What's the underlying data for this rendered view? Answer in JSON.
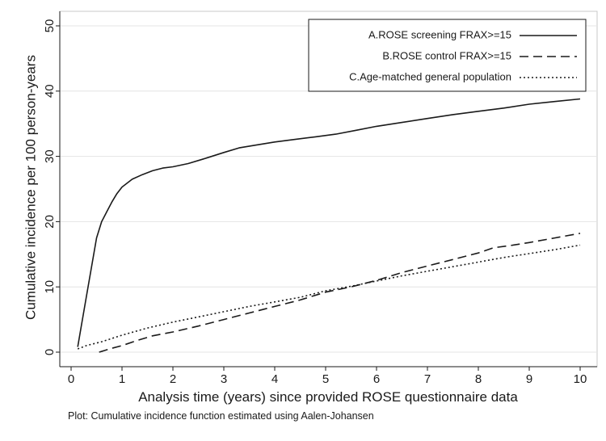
{
  "chart_data": {
    "type": "line",
    "title": "",
    "xlabel": "Analysis time (years) since provided ROSE questionnaire data",
    "ylabel": "Cumulative incidence per 100 person-years",
    "note": "Plot: Cumulative incidence function estimated using Aalen-Johansen",
    "xlim": [
      0,
      10
    ],
    "ylim": [
      0,
      50
    ],
    "x_ticks": [
      0,
      1,
      2,
      3,
      4,
      5,
      6,
      7,
      8,
      9,
      10
    ],
    "y_ticks": [
      0,
      10,
      20,
      30,
      40,
      50
    ],
    "x_tick_labels": [
      "0",
      "1",
      "2",
      "3",
      "4",
      "5",
      "6",
      "7",
      "8",
      "9",
      "10"
    ],
    "y_tick_labels": [
      "0",
      "10",
      "20",
      "30",
      "40",
      "50"
    ],
    "legend_position": "top-right",
    "series": [
      {
        "name": "A.ROSE screening FRAX>=15",
        "style": "solid",
        "color": "#1a1a1a",
        "x": [
          0.13,
          0.2,
          0.3,
          0.4,
          0.5,
          0.6,
          0.7,
          0.8,
          0.9,
          1.0,
          1.2,
          1.4,
          1.6,
          1.8,
          2.0,
          2.3,
          2.6,
          3.0,
          3.3,
          3.6,
          4.0,
          4.4,
          4.8,
          5.2,
          5.6,
          6.0,
          6.5,
          7.0,
          7.5,
          8.0,
          8.5,
          9.0,
          9.5,
          10.0
        ],
        "y": [
          0.8,
          4.0,
          8.5,
          13.0,
          17.5,
          20.0,
          21.5,
          23.0,
          24.3,
          25.3,
          26.5,
          27.2,
          27.8,
          28.2,
          28.4,
          28.9,
          29.6,
          30.6,
          31.3,
          31.7,
          32.2,
          32.6,
          33.0,
          33.4,
          34.0,
          34.6,
          35.2,
          35.8,
          36.4,
          36.9,
          37.4,
          38.0,
          38.4,
          38.8
        ]
      },
      {
        "name": "B.ROSE control FRAX>=15",
        "style": "dashed",
        "color": "#1a1a1a",
        "x": [
          0.55,
          0.8,
          1.0,
          1.3,
          1.6,
          2.0,
          2.5,
          3.0,
          3.5,
          4.0,
          4.5,
          5.0,
          5.5,
          6.0,
          6.5,
          7.0,
          7.5,
          8.0,
          8.3,
          8.6,
          9.0,
          9.5,
          10.0
        ],
        "y": [
          0.0,
          0.6,
          1.0,
          1.8,
          2.5,
          3.1,
          4.0,
          5.0,
          6.0,
          7.0,
          8.0,
          9.2,
          10.0,
          11.0,
          12.2,
          13.2,
          14.2,
          15.2,
          16.0,
          16.3,
          16.8,
          17.5,
          18.2
        ]
      },
      {
        "name": "C.Age-matched general population",
        "style": "dotted",
        "color": "#1a1a1a",
        "x": [
          0.13,
          0.3,
          0.6,
          1.0,
          1.5,
          2.0,
          2.5,
          3.0,
          3.5,
          4.0,
          4.5,
          5.0,
          5.5,
          6.0,
          6.5,
          7.0,
          7.5,
          8.0,
          8.5,
          9.0,
          9.5,
          10.0
        ],
        "y": [
          0.5,
          1.0,
          1.6,
          2.6,
          3.7,
          4.6,
          5.4,
          6.2,
          7.0,
          7.7,
          8.4,
          9.4,
          10.1,
          10.9,
          11.7,
          12.4,
          13.1,
          13.8,
          14.5,
          15.1,
          15.7,
          16.4
        ]
      }
    ]
  }
}
